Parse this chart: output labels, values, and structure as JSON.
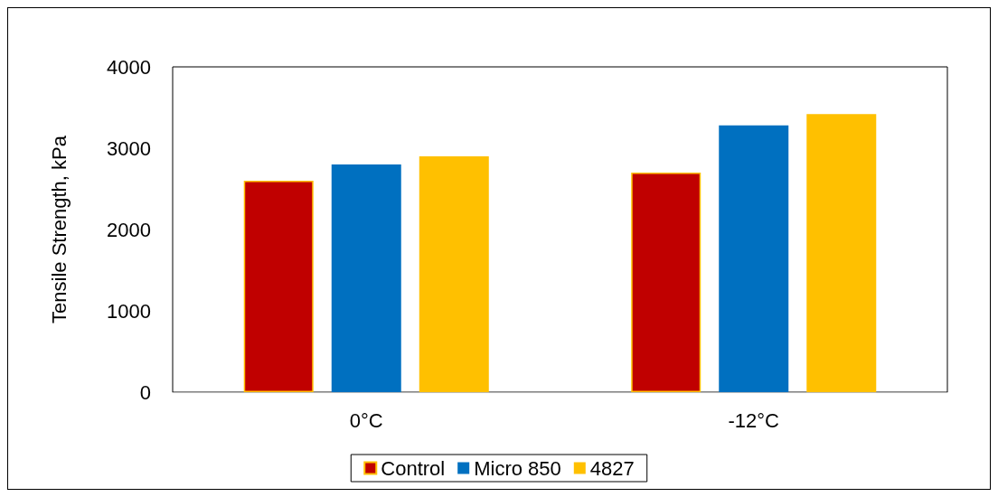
{
  "chart_data": {
    "type": "bar",
    "ylabel": "Tensile Strength, kPa",
    "categories": [
      "0°C",
      "-12°C"
    ],
    "series": [
      {
        "name": "Control",
        "color": "#c00000",
        "values": [
          2600,
          2700
        ]
      },
      {
        "name": "Micro 850",
        "color": "#0070c0",
        "values": [
          2800,
          3280
        ]
      },
      {
        "name": "4827",
        "color": "#ffc000",
        "values": [
          2900,
          3420
        ]
      }
    ],
    "ylim": [
      0,
      4000
    ],
    "yticks": [
      0,
      1000,
      2000,
      3000,
      4000
    ],
    "grid": false,
    "legend": "bottom"
  }
}
